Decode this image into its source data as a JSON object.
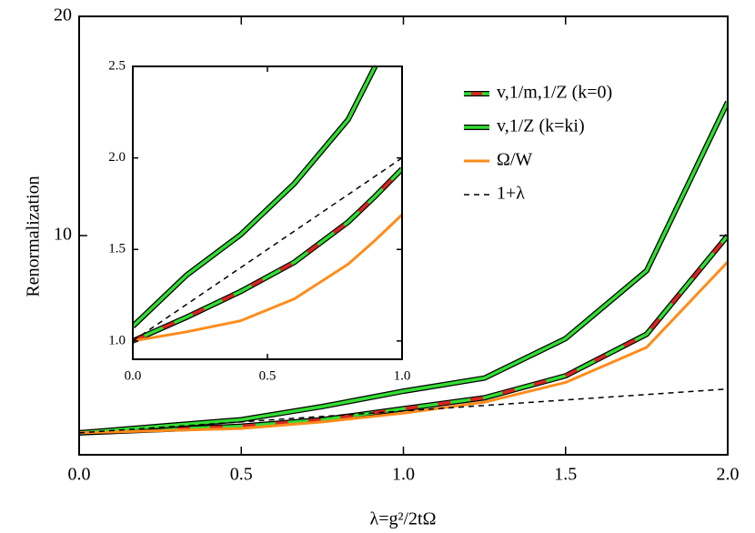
{
  "chart_data": [
    {
      "type": "line",
      "xlabel": "λ=g²/2tΩ",
      "ylabel": "Renormalization",
      "x": [
        0,
        0.25,
        0.5,
        0.75,
        1.0,
        1.25,
        1.5,
        1.75,
        2.0
      ],
      "xlim": [
        0,
        2
      ],
      "ylim": [
        0,
        20
      ],
      "xticks": [
        {
          "value": 0,
          "label": "0.0"
        },
        {
          "value": 0.5,
          "label": "0.5"
        },
        {
          "value": 1.0,
          "label": "1.0"
        },
        {
          "value": 1.5,
          "label": "1.5"
        },
        {
          "value": 2.0,
          "label": "2.0"
        }
      ],
      "yticks": [
        10,
        20
      ],
      "legend": "upper right",
      "series": [
        {
          "name": "v,1/m,1/Z (k=0)",
          "color": "#33dd33",
          "accent_color": "#dd2222",
          "values": [
            1.0,
            1.15,
            1.3,
            1.6,
            2.1,
            2.6,
            3.6,
            5.5,
            10.0
          ]
        },
        {
          "name": "v,1/Z (k=ki)",
          "color": "#33dd33",
          "values": [
            1.0,
            1.3,
            1.6,
            2.2,
            2.9,
            3.5,
            5.3,
            8.4,
            16.1
          ]
        },
        {
          "name": "Ω/W",
          "color": "#ff8c1a",
          "values": [
            1.0,
            1.1,
            1.2,
            1.5,
            1.9,
            2.4,
            3.3,
            4.9,
            8.8
          ]
        },
        {
          "name": "1+λ",
          "color": "#000000",
          "style": "dashed",
          "values": [
            1.0,
            1.25,
            1.5,
            1.75,
            2.0,
            2.25,
            2.5,
            2.75,
            3.0
          ]
        }
      ]
    },
    {
      "type": "line",
      "x": [
        0,
        0.2,
        0.4,
        0.6,
        0.8,
        0.9,
        1.0
      ],
      "xlim": [
        0,
        1
      ],
      "ylim": [
        0.9,
        2.5
      ],
      "xticks": [
        {
          "value": 0,
          "label": "0.0"
        },
        {
          "value": 0.5,
          "label": "0.5"
        },
        {
          "value": 1.0,
          "label": "1.0"
        }
      ],
      "yticks": [
        {
          "value": 1.0,
          "label": "1.0"
        },
        {
          "value": 1.5,
          "label": "1.5"
        },
        {
          "value": 2.0,
          "label": "2.0"
        },
        2.5
      ],
      "series": [
        {
          "color": "#33dd33",
          "accent_color": "#dd2222",
          "values": [
            1.0,
            1.13,
            1.27,
            1.43,
            1.65,
            1.79,
            1.94
          ]
        },
        {
          "color": "#33dd33",
          "values": [
            1.08,
            1.36,
            1.58,
            1.86,
            2.21,
            2.5,
            null
          ]
        },
        {
          "color": "#ff8c1a",
          "values": [
            1.0,
            1.05,
            1.11,
            1.23,
            1.42,
            1.55,
            1.69
          ]
        },
        {
          "color": "#000000",
          "style": "dashed",
          "values": [
            1.0,
            1.2,
            1.4,
            1.6,
            1.8,
            1.9,
            2.0
          ]
        }
      ]
    }
  ]
}
